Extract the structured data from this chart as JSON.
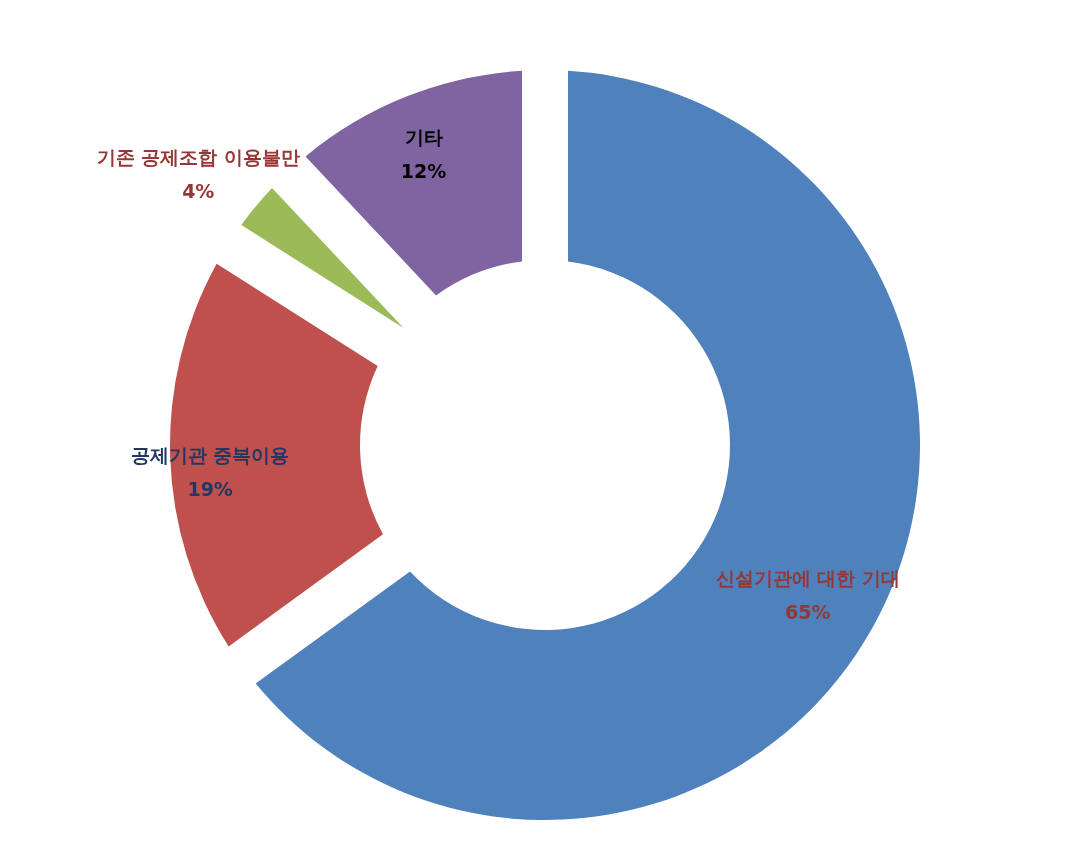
{
  "chart_data": {
    "type": "donut",
    "categories": [
      "신설기관에 대한 기대",
      "공제기관 중복이용",
      "기존 공제조합 이용불만",
      "기타"
    ],
    "values": [
      65,
      19,
      4,
      12
    ],
    "colors": [
      "#4f81bd",
      "#c0504d",
      "#9bbb59",
      "#8064a2"
    ],
    "value_labels": [
      "65%",
      "19%",
      "4%",
      "12%"
    ]
  }
}
